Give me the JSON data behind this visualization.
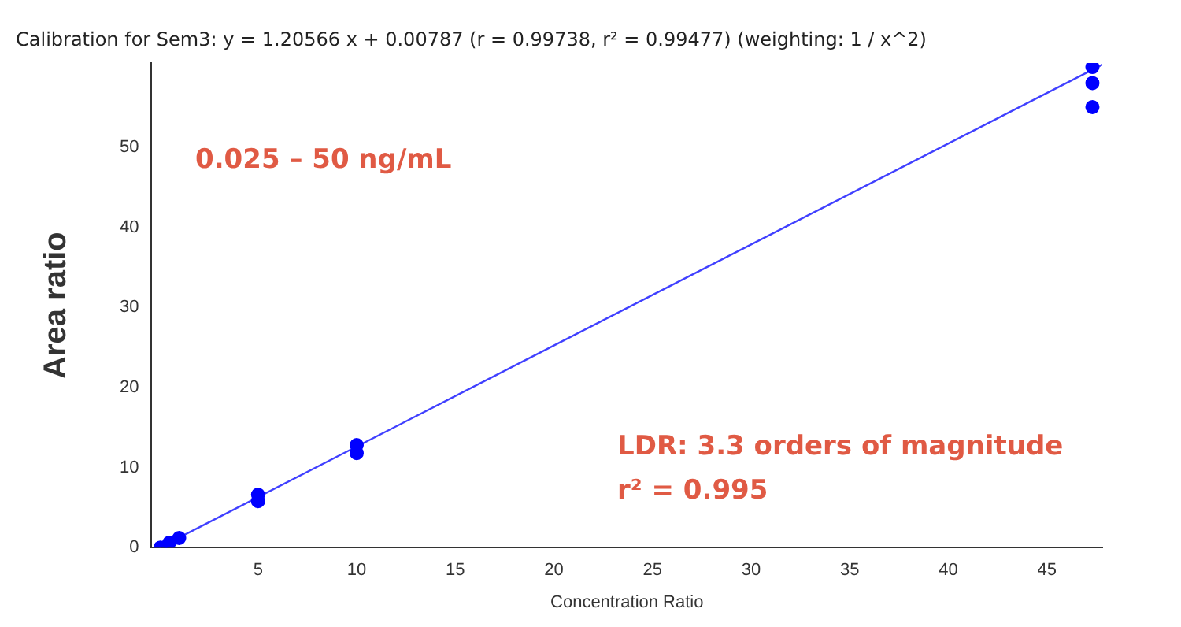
{
  "chart_data": {
    "type": "scatter",
    "title": "Calibration for Sem3: y = 1.20566 x + 0.00787 (r = 0.99738, r² = 0.99477)  (weighting: 1 / x^2)",
    "xlabel": "Concentration Ratio",
    "ylabel": "Area ratio",
    "annotations": [
      "0.025 – 50 ng/mL",
      "LDR: 3.3 orders of magnitude",
      "r² = 0.995"
    ],
    "xlim": [
      -0.4,
      47.8
    ],
    "ylim": [
      0,
      60.5
    ],
    "xticks": [
      5,
      10,
      15,
      20,
      25,
      30,
      35,
      40,
      45
    ],
    "yticks": [
      0,
      10,
      20,
      30,
      40,
      50
    ],
    "grid": false,
    "legend": false,
    "marker": "circle",
    "series": [
      {
        "color": "#0000ff",
        "x": [
          0.05,
          0.5,
          1,
          5,
          5,
          10,
          10,
          47.3,
          47.3,
          47.3
        ],
        "values": [
          0,
          0.6,
          1.2,
          5.8,
          6.6,
          11.8,
          12.8,
          55,
          58,
          60
        ]
      },
      {
        "type": "line",
        "color": "#4040ff",
        "marker": "none",
        "x": [
          0,
          47.8
        ],
        "values": [
          0,
          60.3
        ]
      }
    ]
  }
}
